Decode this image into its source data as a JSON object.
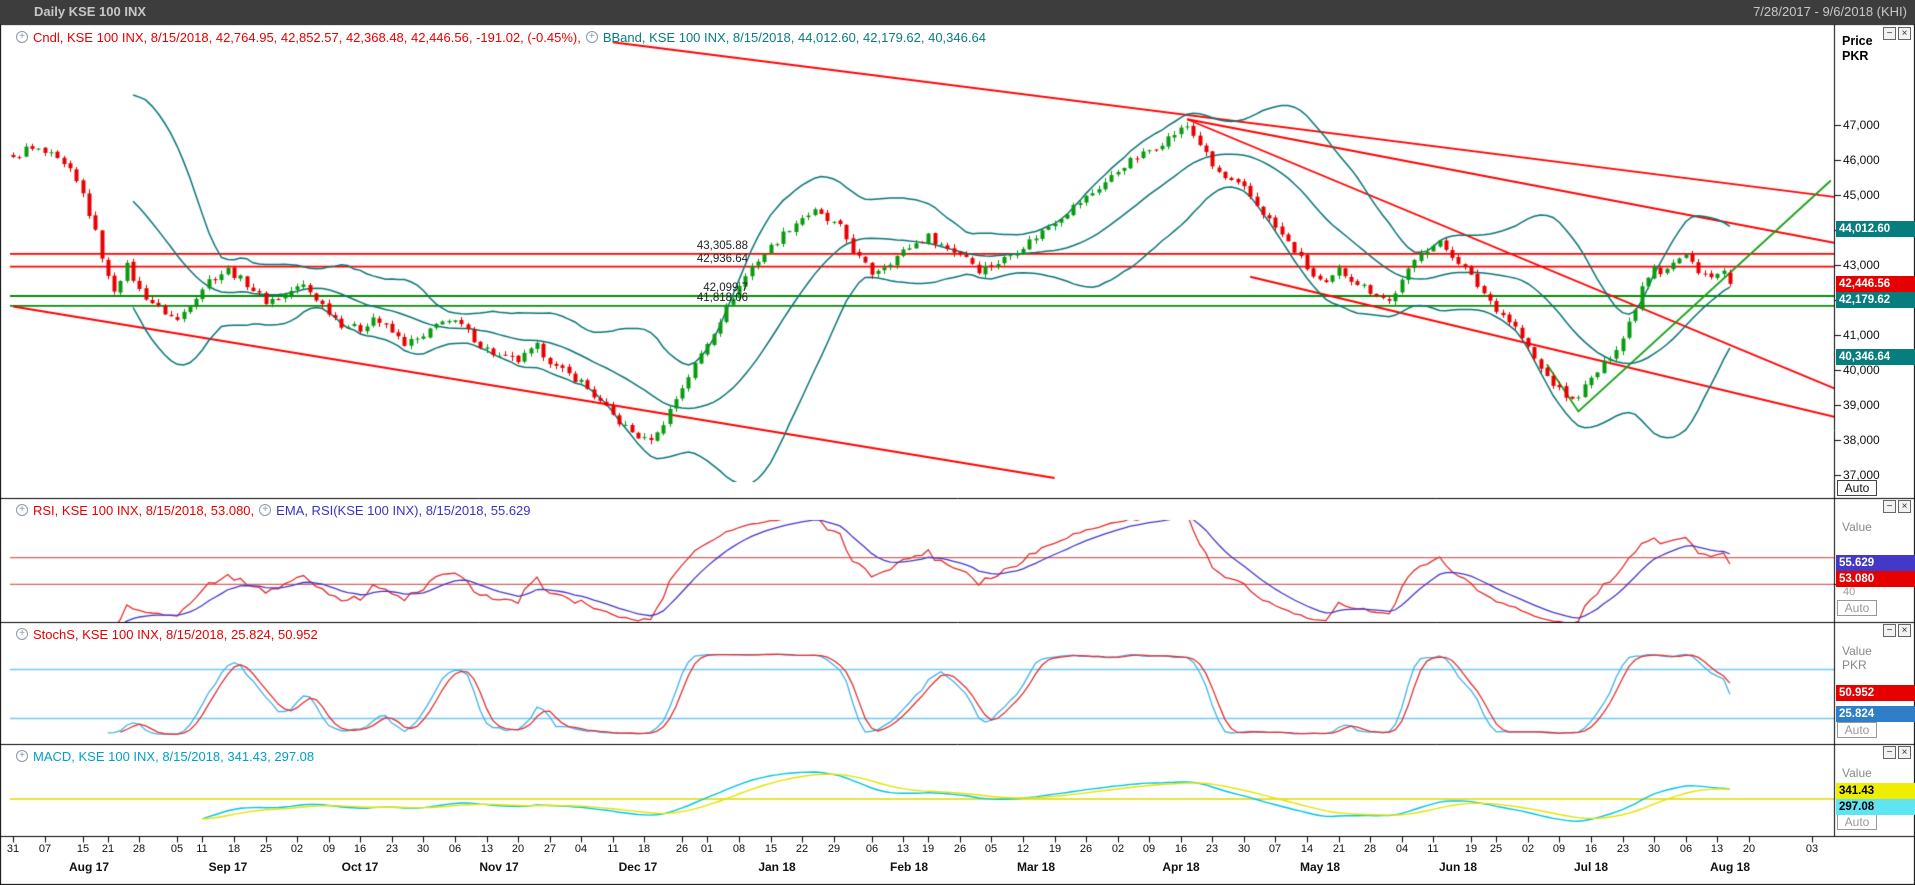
{
  "titlebar": {
    "title": "Daily KSE 100 INX",
    "date_range": "7/28/2017 - 9/6/2018 (KHI)"
  },
  "icons": {
    "legend_collapse_glyph": "+",
    "minimize_glyph": "−",
    "close_glyph": "×"
  },
  "main_panel": {
    "legend_cndl": "Cndl, KSE 100 INX, 8/15/2018, 42,764.95, 42,852.57, 42,368.48, 42,446.56, -191.02, (-0.45%),",
    "legend_bband": "BBand, KSE 100 INX, 8/15/2018, 44,012.60, 42,179.62, 40,346.64",
    "axis_title": "Price\nPKR",
    "auto_label": "Auto",
    "value_boxes": [
      {
        "text": "44,012.60",
        "value": 44012.6,
        "bg": "#077d7d",
        "fg": "#ffffff"
      },
      {
        "text": "42,446.56",
        "value": 42446.56,
        "bg": "#e60000",
        "fg": "#ffffff"
      },
      {
        "text": "42,179.62",
        "value": 42179.62,
        "bg": "#077d7d",
        "fg": "#ffffff"
      },
      {
        "text": "40,346.64",
        "value": 40346.64,
        "bg": "#077d7d",
        "fg": "#ffffff"
      }
    ]
  },
  "rsi_panel": {
    "legend_rsi": "RSI, KSE 100 INX, 8/15/2018, 53.080,",
    "legend_ema": "EMA, RSI(KSE 100 INX), 8/15/2018, 55.629",
    "value_label": "Value",
    "tick_label": "40",
    "auto_label": "Auto",
    "value_boxes": [
      {
        "text": "55.629",
        "value": 55.629,
        "bg": "#4338c8",
        "fg": "#ffffff"
      },
      {
        "text": "53.080",
        "value": 53.08,
        "bg": "#e60000",
        "fg": "#ffffff"
      }
    ]
  },
  "stoch_panel": {
    "legend": "StochS, KSE 100 INX, 8/15/2018, 25.824, 50.952",
    "value_label": "Value",
    "currency_label": "PKR",
    "auto_label": "Auto",
    "value_boxes": [
      {
        "text": "50.952",
        "value": 50.952,
        "bg": "#e60000",
        "fg": "#ffffff"
      },
      {
        "text": "25.824",
        "value": 25.824,
        "bg": "#2e7fc8",
        "fg": "#ffffff"
      }
    ]
  },
  "macd_panel": {
    "legend": "MACD, KSE 100 INX, 8/15/2018, 341.43, 297.08",
    "value_label": "Value",
    "auto_label": "Auto",
    "value_boxes": [
      {
        "text": "341.43",
        "value": 341.43,
        "bg": "#f0ee00",
        "fg": "#000000"
      },
      {
        "text": "297.08",
        "value": 297.08,
        "bg": "#5fe4f4",
        "fg": "#000000"
      }
    ]
  },
  "chart_data": {
    "type": "candlestick",
    "symbol": "KSE 100 INX",
    "timeframe": "Daily",
    "title": "Daily KSE 100 INX",
    "ylabel": "Price PKR",
    "last_bar": {
      "date": "8/15/2018",
      "open": 42764.95,
      "high": 42852.57,
      "low": 42368.48,
      "close": 42446.56,
      "change": -191.02,
      "change_pct": "-0.45%"
    },
    "y_range": [
      36900,
      48900
    ],
    "y_ticks": [
      {
        "label": "47,000",
        "value": 47000
      },
      {
        "label": "46,000",
        "value": 46000
      },
      {
        "label": "45,000",
        "value": 45000
      },
      {
        "label": "44,000",
        "value": 44000
      },
      {
        "label": "43,000",
        "value": 43000
      },
      {
        "label": "42,000",
        "value": 42000
      },
      {
        "label": "41,000",
        "value": 41000
      },
      {
        "label": "40,000",
        "value": 40000
      },
      {
        "label": "39,000",
        "value": 39000
      },
      {
        "label": "38,000",
        "value": 38000
      },
      {
        "label": "37,000",
        "value": 37000
      }
    ],
    "slots_total": 289,
    "right_margin_slots": 0,
    "last_bar_slot": 272,
    "noise_amplitude": 110,
    "close_anchors": [
      [
        0,
        46000
      ],
      [
        2,
        46300
      ],
      [
        4,
        46250
      ],
      [
        6,
        46100
      ],
      [
        9,
        45650
      ],
      [
        11,
        45000
      ],
      [
        13,
        43900
      ],
      [
        15,
        42600
      ],
      [
        16,
        42300
      ],
      [
        18,
        42950
      ],
      [
        20,
        42250
      ],
      [
        23,
        41750
      ],
      [
        26,
        41400
      ],
      [
        28,
        41900
      ],
      [
        31,
        42550
      ],
      [
        34,
        42850
      ],
      [
        37,
        42450
      ],
      [
        40,
        41950
      ],
      [
        42,
        42050
      ],
      [
        44,
        42250
      ],
      [
        46,
        42400
      ],
      [
        49,
        41850
      ],
      [
        52,
        41300
      ],
      [
        55,
        41150
      ],
      [
        57,
        41500
      ],
      [
        60,
        41050
      ],
      [
        62,
        40750
      ],
      [
        65,
        40900
      ],
      [
        68,
        41450
      ],
      [
        71,
        41250
      ],
      [
        74,
        40700
      ],
      [
        77,
        40350
      ],
      [
        80,
        40250
      ],
      [
        83,
        40650
      ],
      [
        86,
        40050
      ],
      [
        88,
        39850
      ],
      [
        90,
        39650
      ],
      [
        93,
        39050
      ],
      [
        96,
        38500
      ],
      [
        98,
        38200
      ],
      [
        100,
        37980
      ],
      [
        102,
        38150
      ],
      [
        104,
        38850
      ],
      [
        106,
        39500
      ],
      [
        109,
        40450
      ],
      [
        111,
        41100
      ],
      [
        114,
        42100
      ],
      [
        117,
        42950
      ],
      [
        120,
        43500
      ],
      [
        123,
        44050
      ],
      [
        125,
        44350
      ],
      [
        127,
        44500
      ],
      [
        129,
        44250
      ],
      [
        131,
        44050
      ],
      [
        133,
        43400
      ],
      [
        136,
        42750
      ],
      [
        139,
        43100
      ],
      [
        142,
        43500
      ],
      [
        145,
        43800
      ],
      [
        148,
        43450
      ],
      [
        151,
        43250
      ],
      [
        153,
        42850
      ],
      [
        156,
        43050
      ],
      [
        159,
        43400
      ],
      [
        162,
        43800
      ],
      [
        165,
        44250
      ],
      [
        168,
        44650
      ],
      [
        171,
        45050
      ],
      [
        174,
        45500
      ],
      [
        176,
        45850
      ],
      [
        179,
        46150
      ],
      [
        182,
        46500
      ],
      [
        185,
        46850
      ],
      [
        186,
        46950
      ],
      [
        188,
        46450
      ],
      [
        190,
        45800
      ],
      [
        192,
        45450
      ],
      [
        195,
        45150
      ],
      [
        197,
        44700
      ],
      [
        200,
        44050
      ],
      [
        203,
        43400
      ],
      [
        206,
        42650
      ],
      [
        208,
        42400
      ],
      [
        210,
        42850
      ],
      [
        212,
        42600
      ],
      [
        215,
        42250
      ],
      [
        218,
        41950
      ],
      [
        220,
        42500
      ],
      [
        223,
        43400
      ],
      [
        226,
        43600
      ],
      [
        229,
        43100
      ],
      [
        232,
        42400
      ],
      [
        235,
        41750
      ],
      [
        238,
        41200
      ],
      [
        240,
        40600
      ],
      [
        242,
        40000
      ],
      [
        245,
        39400
      ],
      [
        247,
        39100
      ],
      [
        249,
        39500
      ],
      [
        252,
        40150
      ],
      [
        255,
        40900
      ],
      [
        257,
        41800
      ],
      [
        258,
        42400
      ],
      [
        260,
        43000
      ],
      [
        261,
        42800
      ],
      [
        263,
        43050
      ],
      [
        265,
        43250
      ],
      [
        267,
        42850
      ],
      [
        269,
        42600
      ],
      [
        271,
        42800
      ],
      [
        272,
        42446.56
      ]
    ],
    "bollinger": {
      "period": 20,
      "stddev": 2,
      "last_upper": 44012.6,
      "last_middle": 42179.62,
      "last_lower": 40346.64
    },
    "rsi": {
      "period": 14,
      "last": 53.08,
      "ema_period": 9,
      "ema_last": 55.629,
      "range": [
        15,
        85
      ],
      "guides": [
        60,
        40
      ]
    },
    "stoch": {
      "k_period": 14,
      "smooth": 3,
      "d_period": 3,
      "last_k": 25.824,
      "last_d": 50.952,
      "range": [
        -4,
        104
      ],
      "guides": [
        80,
        20
      ]
    },
    "macd": {
      "fast": 12,
      "slow": 26,
      "signal": 9,
      "last_macd": 297.08,
      "last_signal": 341.43
    },
    "sr_lines": [
      {
        "label": "43,305.88",
        "value": 43305.88,
        "color": "#ff0000"
      },
      {
        "label": "42,936.64",
        "value": 42936.64,
        "color": "#ff0000"
      },
      {
        "label": "42,099.7",
        "value": 42099.7,
        "color": "#0a8a0a"
      },
      {
        "label": "41,818.06",
        "value": 41818.06,
        "color": "#0a8a0a"
      }
    ],
    "trend_lines": [
      {
        "color": "#ff0000",
        "points": [
          [
            95,
            49350
          ],
          [
            292,
            44850
          ]
        ]
      },
      {
        "color": "#ff0000",
        "points": [
          [
            186,
            47150
          ],
          [
            292,
            43500
          ]
        ]
      },
      {
        "color": "#ff0000",
        "points": [
          [
            186,
            47150
          ],
          [
            292,
            39200
          ]
        ]
      },
      {
        "color": "#ff0000",
        "points": [
          [
            0,
            41800
          ],
          [
            165,
            36900
          ]
        ]
      },
      {
        "color": "#ff0000",
        "points": [
          [
            196,
            42650
          ],
          [
            292,
            38500
          ]
        ]
      },
      {
        "color": "#18a018",
        "points": [
          [
            243,
            40150
          ],
          [
            248,
            38800
          ],
          [
            288,
            45400
          ]
        ]
      }
    ],
    "day_ticks": [
      [
        "31",
        0
      ],
      [
        "07",
        5
      ],
      [
        "15",
        11
      ],
      [
        "21",
        15
      ],
      [
        "28",
        20
      ],
      [
        "05",
        26
      ],
      [
        "11",
        30
      ],
      [
        "18",
        35
      ],
      [
        "25",
        40
      ],
      [
        "02",
        45
      ],
      [
        "09",
        50
      ],
      [
        "16",
        55
      ],
      [
        "23",
        60
      ],
      [
        "30",
        65
      ],
      [
        "06",
        70
      ],
      [
        "13",
        75
      ],
      [
        "20",
        80
      ],
      [
        "27",
        85
      ],
      [
        "04",
        90
      ],
      [
        "11",
        95
      ],
      [
        "18",
        100
      ],
      [
        "26",
        106
      ],
      [
        "01",
        110
      ],
      [
        "08",
        115
      ],
      [
        "15",
        120
      ],
      [
        "22",
        125
      ],
      [
        "29",
        130
      ],
      [
        "06",
        136
      ],
      [
        "13",
        141
      ],
      [
        "19",
        145
      ],
      [
        "26",
        150
      ],
      [
        "05",
        155
      ],
      [
        "12",
        160
      ],
      [
        "19",
        165
      ],
      [
        "26",
        170
      ],
      [
        "02",
        175
      ],
      [
        "09",
        180
      ],
      [
        "16",
        185
      ],
      [
        "23",
        190
      ],
      [
        "30",
        195
      ],
      [
        "07",
        200
      ],
      [
        "14",
        205
      ],
      [
        "21",
        210
      ],
      [
        "28",
        215
      ],
      [
        "04",
        220
      ],
      [
        "11",
        225
      ],
      [
        "19",
        231
      ],
      [
        "25",
        235
      ],
      [
        "02",
        240
      ],
      [
        "09",
        245
      ],
      [
        "16",
        250
      ],
      [
        "23",
        255
      ],
      [
        "30",
        260
      ],
      [
        "06",
        265
      ],
      [
        "13",
        270
      ],
      [
        "20",
        275
      ],
      [
        "03",
        285
      ]
    ],
    "month_labels": [
      [
        "Aug 17",
        12
      ],
      [
        "Sep 17",
        34
      ],
      [
        "Oct 17",
        55
      ],
      [
        "Nov 17",
        77
      ],
      [
        "Dec 17",
        99
      ],
      [
        "Jan 18",
        121
      ],
      [
        "Feb 18",
        142
      ],
      [
        "Mar 18",
        162
      ],
      [
        "Apr 18",
        185
      ],
      [
        "May 18",
        207
      ],
      [
        "Jun 18",
        229
      ],
      [
        "Jul 18",
        250
      ],
      [
        "Aug 18",
        272
      ]
    ],
    "colors": {
      "up": "#089a10",
      "down": "#e60000",
      "bollinger": "#0b7474",
      "rsi": "#e03030",
      "rsi_ema": "#4338c8",
      "rsi_guide": "#d86060",
      "stoch_k": "#45b0ea",
      "stoch_d": "#e03030",
      "stoch_guide": "#74c8f2",
      "macd_line": "#00c4e4",
      "macd_signal": "#e4e400",
      "macd_zero": "#d8d800",
      "axis": "#000000"
    }
  }
}
